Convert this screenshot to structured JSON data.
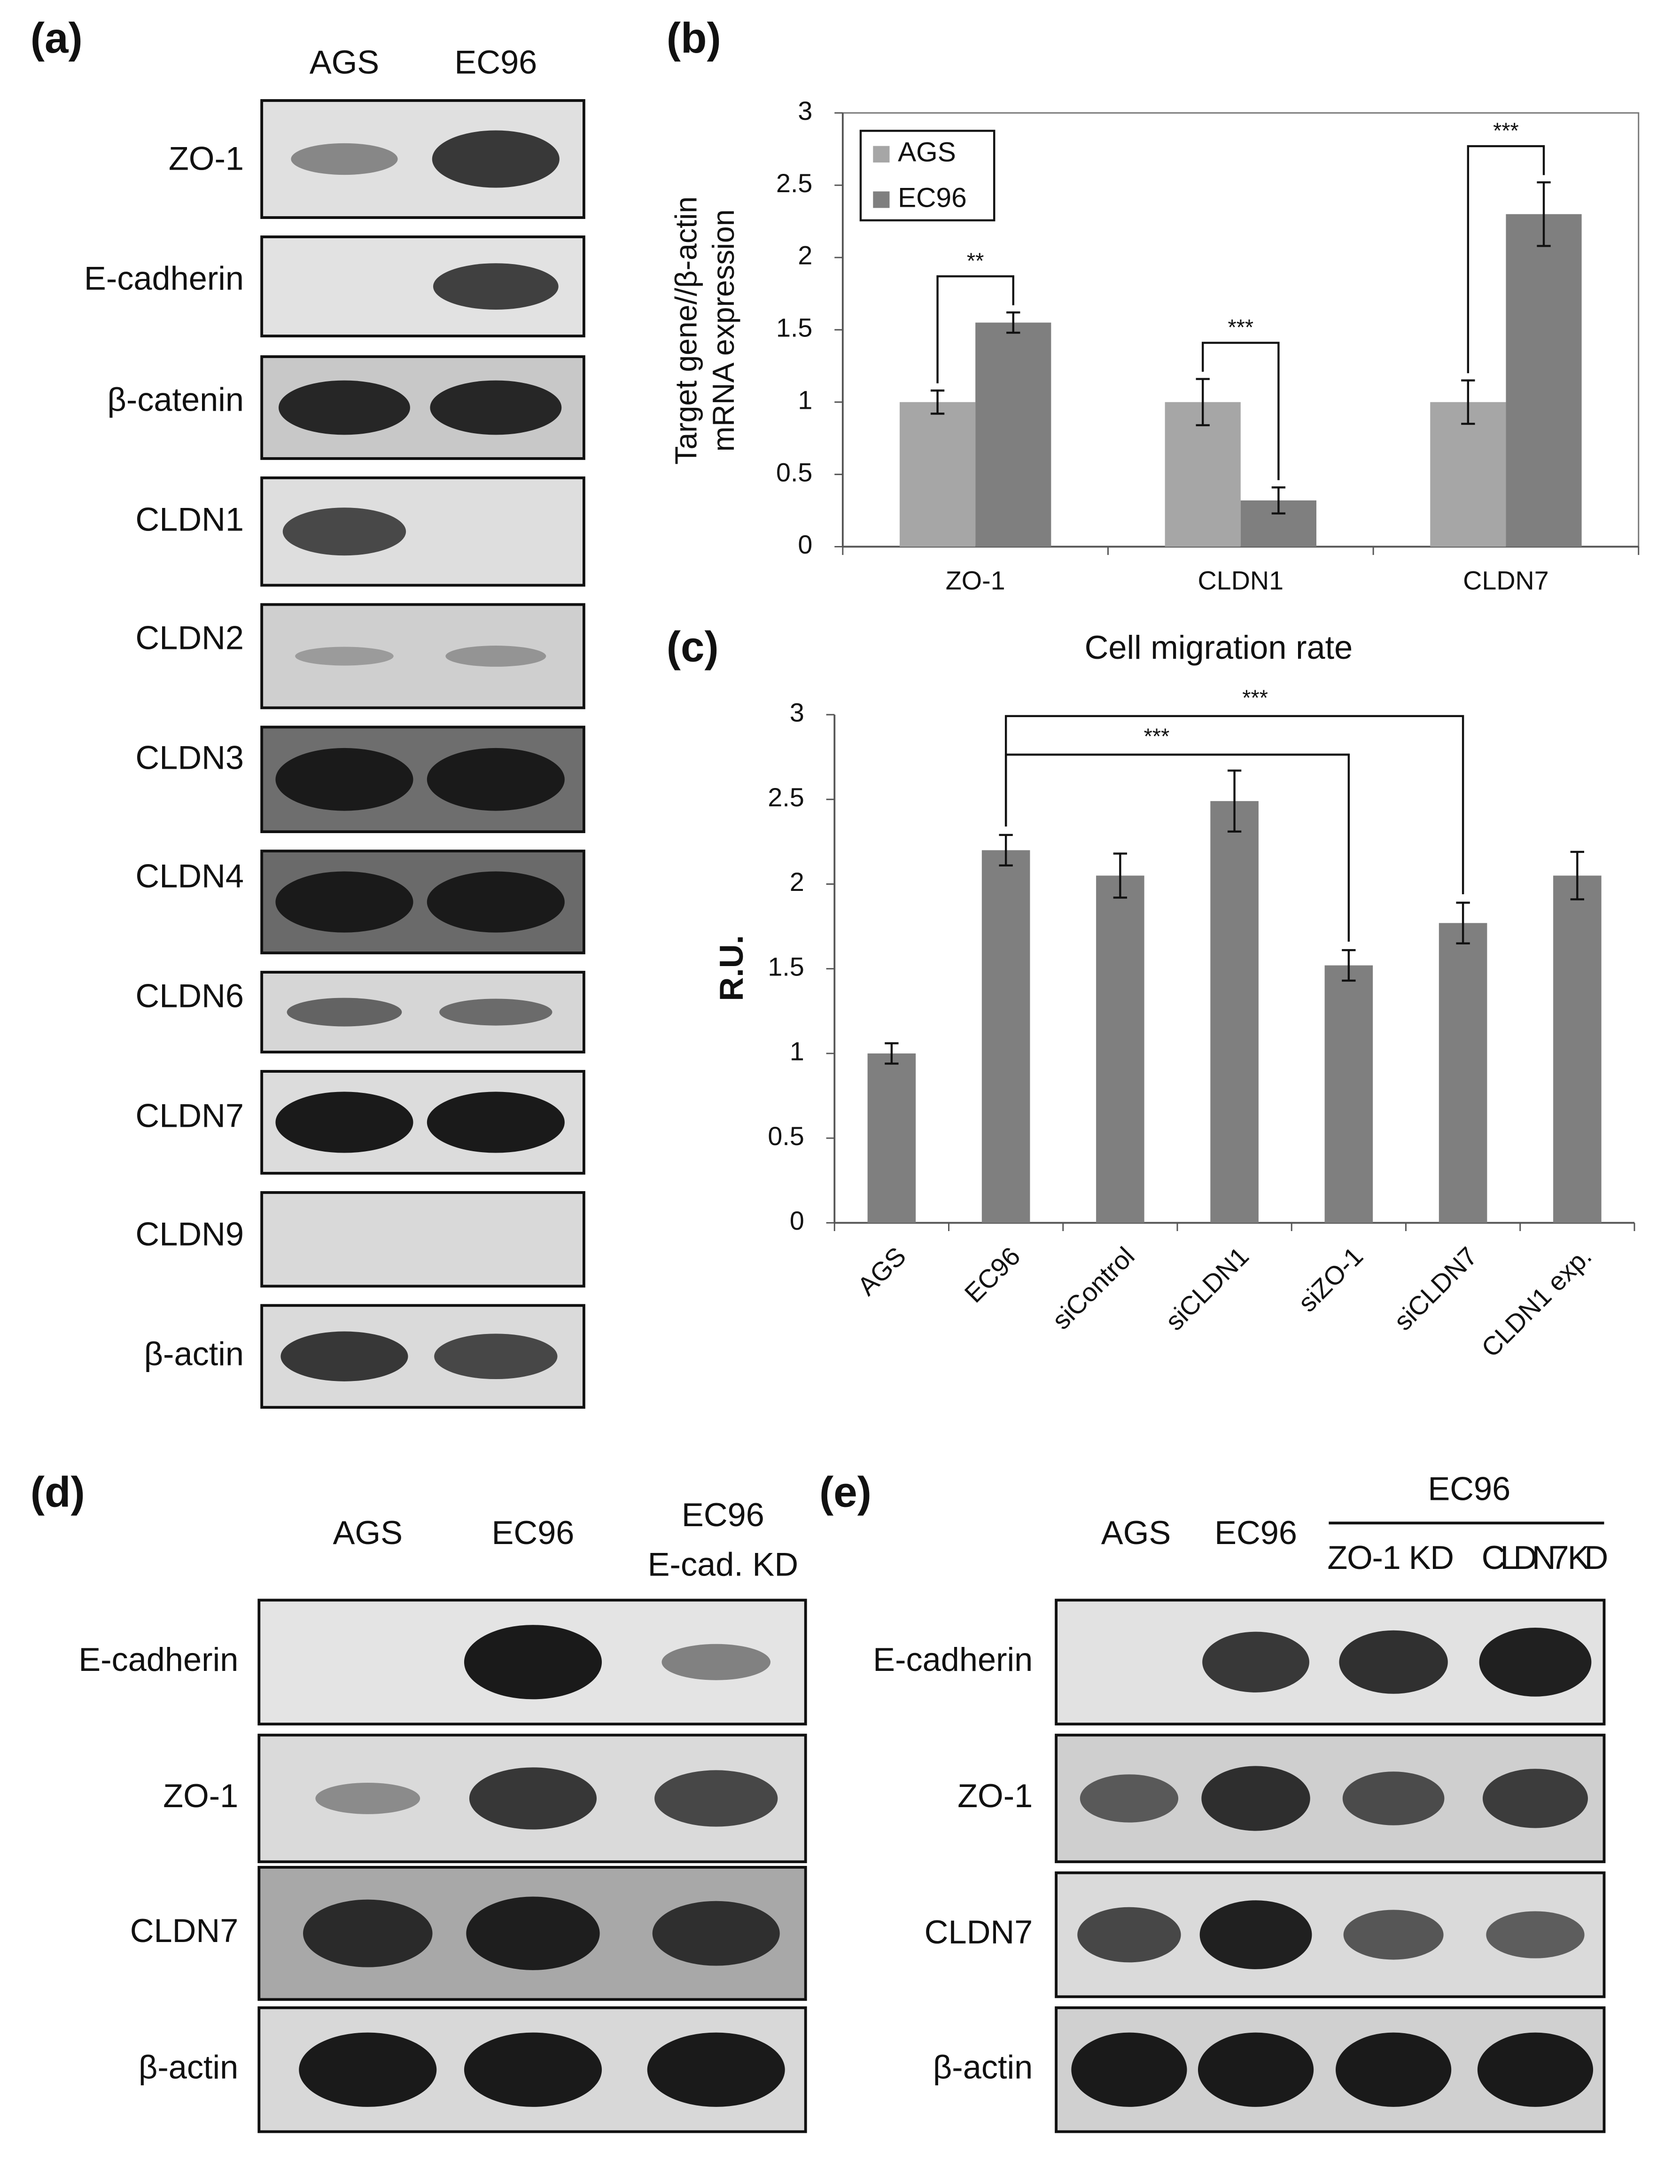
{
  "figure": {
    "panel_labels": [
      "(a)",
      "(b)",
      "(c)",
      "(d)",
      "(e)"
    ]
  },
  "blots": {
    "a": {
      "columns": [
        "AGS",
        "EC96"
      ],
      "rows": [
        "ZO-1",
        "E-cadherin",
        "β-catenin",
        "CLDN1",
        "CLDN2",
        "CLDN3",
        "CLDN4",
        "CLDN6",
        "CLDN7",
        "CLDN9",
        "β-actin"
      ]
    },
    "d": {
      "columns": [
        "AGS",
        "EC96"
      ],
      "extra_column": [
        "EC96",
        "E-cad. KD"
      ],
      "rows": [
        "E-cadherin",
        "ZO-1",
        "CLDN7",
        "β-actin"
      ]
    },
    "e": {
      "columns": [
        "AGS",
        "EC96"
      ],
      "group": {
        "label": "EC96",
        "columns": [
          "ZO-1 KD",
          "CLDN7 KD"
        ]
      },
      "rows": [
        "E-cadherin",
        "ZO-1",
        "CLDN7",
        "β-actin"
      ]
    }
  },
  "chart_data": [
    {
      "type": "bar",
      "ylabel": [
        "Target gene//β-actin",
        "mRNA expression"
      ],
      "categories": [
        "ZO-1",
        "CLDN1",
        "CLDN7"
      ],
      "series": [
        {
          "name": "AGS",
          "color": "#a6a6a6",
          "values": [
            1,
            1,
            1
          ],
          "errors": [
            0.08,
            0.16,
            0.15
          ]
        },
        {
          "name": "EC96",
          "color": "#7f7f7f",
          "values": [
            1.55,
            0.32,
            2.3
          ],
          "errors": [
            0.07,
            0.09,
            0.22
          ]
        }
      ],
      "ylim": [
        0,
        3
      ],
      "yticks": [
        0,
        0.5,
        1,
        1.5,
        2,
        2.5,
        3
      ],
      "legend": "upper left",
      "annotations": [
        "**",
        "***",
        "***"
      ]
    },
    {
      "type": "bar",
      "title": "Cell migration rate",
      "ylabel": "R.U.",
      "categories": [
        "AGS",
        "EC96",
        "siControl",
        "siCLDN1",
        "siZO-1",
        "siCLDN7",
        "CLDN1 exp."
      ],
      "values": [
        1,
        2.2,
        2.05,
        2.49,
        1.52,
        1.77,
        2.05
      ],
      "errors": [
        0.06,
        0.09,
        0.13,
        0.18,
        0.09,
        0.12,
        0.14
      ],
      "color": "#7f7f7f",
      "ylim": [
        0,
        3
      ],
      "yticks": [
        0,
        0.5,
        1,
        1.5,
        2,
        2.5,
        3
      ],
      "annotations": [
        "***",
        "***"
      ]
    }
  ]
}
